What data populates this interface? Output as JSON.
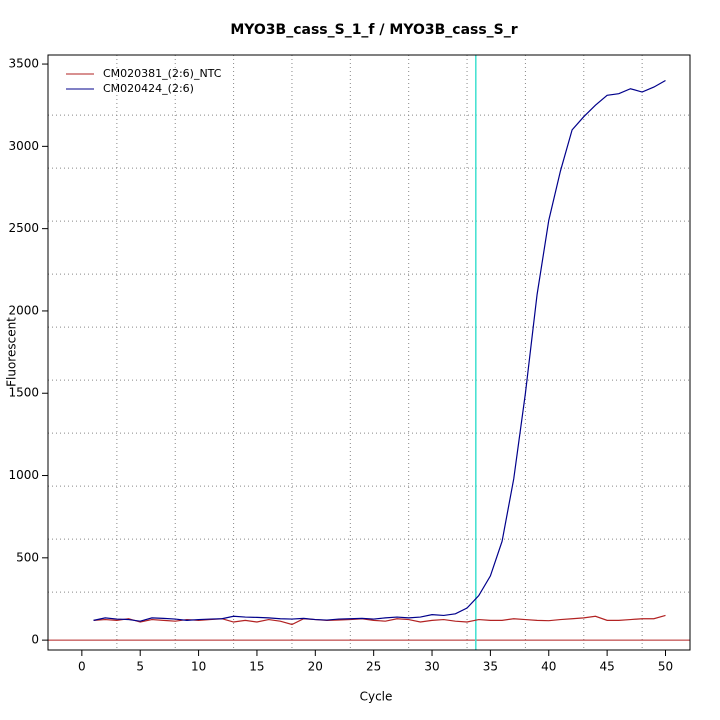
{
  "chart_data": {
    "type": "line",
    "title": "MYO3B_cass_S_1_f / MYO3B_cass_S_r",
    "x_label": "Cycle",
    "y_label": "Fluorescent",
    "x": [
      1,
      2,
      3,
      4,
      5,
      6,
      7,
      8,
      9,
      10,
      11,
      12,
      13,
      14,
      15,
      16,
      17,
      18,
      19,
      20,
      21,
      22,
      23,
      24,
      25,
      26,
      27,
      28,
      29,
      30,
      31,
      32,
      33,
      34,
      35,
      36,
      37,
      38,
      39,
      40,
      41,
      42,
      43,
      44,
      45,
      46,
      47,
      48,
      49,
      50
    ],
    "series": [
      {
        "name": "CM020381_(2:6)_NTC",
        "color": "#b22222",
        "values": [
          120,
          125,
          120,
          130,
          110,
          125,
          120,
          115,
          125,
          120,
          125,
          130,
          110,
          120,
          110,
          125,
          115,
          95,
          130,
          125,
          120,
          122,
          125,
          130,
          120,
          115,
          130,
          125,
          110,
          120,
          125,
          115,
          110,
          125,
          120,
          120,
          130,
          125,
          120,
          118,
          125,
          130,
          135,
          145,
          120,
          120,
          125,
          130,
          130,
          150
        ]
      },
      {
        "name": "CM020424_(2:6)",
        "color": "#00008b",
        "values": [
          120,
          135,
          128,
          125,
          115,
          135,
          132,
          128,
          120,
          125,
          128,
          130,
          145,
          140,
          138,
          135,
          130,
          128,
          132,
          125,
          122,
          128,
          130,
          132,
          128,
          135,
          140,
          135,
          140,
          155,
          150,
          160,
          195,
          270,
          390,
          600,
          980,
          1500,
          2100,
          2550,
          2850,
          3100,
          3180,
          3250,
          3310,
          3320,
          3350,
          3330,
          3360,
          3400
        ]
      }
    ],
    "xlim": [
      -2.9,
      52.1
    ],
    "ylim": [
      -60,
      3555
    ],
    "xticks": [
      0,
      5,
      10,
      15,
      20,
      25,
      30,
      35,
      40,
      45,
      50
    ],
    "yticks": [
      0,
      500,
      1000,
      1500,
      2000,
      2500,
      3000,
      3500
    ],
    "xgrid": [
      3,
      8,
      13,
      18,
      23,
      28,
      33,
      38,
      43,
      48
    ],
    "ygrid": [
      292,
      614,
      936,
      1258,
      1580,
      1902,
      2224,
      2546,
      2868,
      3190
    ],
    "threshold_cycle": 33.75,
    "threshold_color": "#40e0d0",
    "baseline": 0,
    "baseline_color": "#b22222",
    "legend": "top-left"
  }
}
